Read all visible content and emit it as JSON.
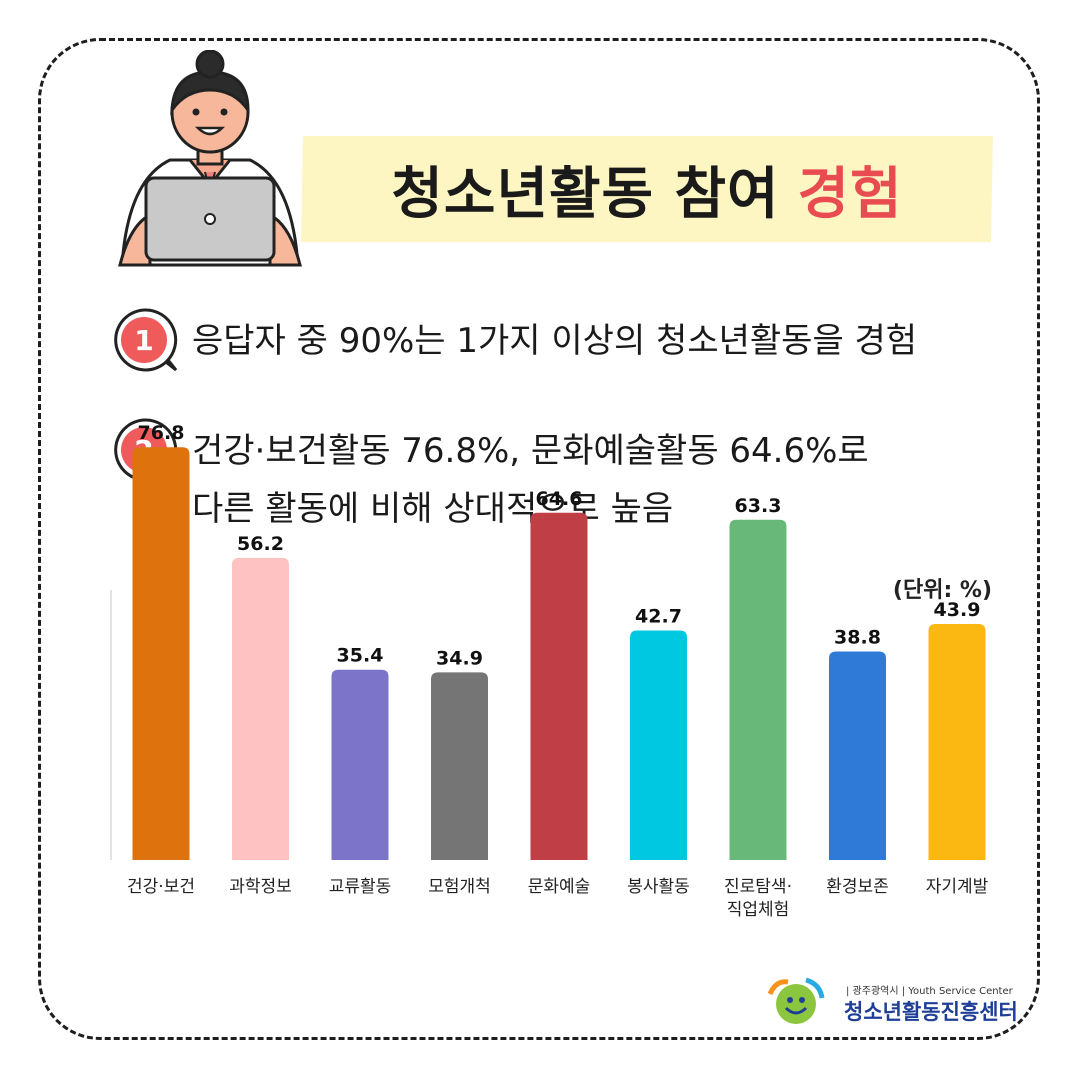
{
  "title": {
    "main": "청소년활동 참여",
    "accent": "경험"
  },
  "points": [
    {
      "badge": "1",
      "lines": [
        "응답자 중 90%는 1가지 이상의 청소년활동을 경험"
      ]
    },
    {
      "badge": "2",
      "lines": [
        "건강·보건활동 76.8%, 문화예술활동 64.6%로",
        "다른 활동에 비해 상대적으로 높음"
      ]
    }
  ],
  "unit_label": "(단위: %)",
  "colors": {
    "title_bg": "#fdf6c3",
    "accent": "#e84c51",
    "badge": "#ef5b5b"
  },
  "chart_data": {
    "type": "bar",
    "title": "",
    "xlabel": "",
    "ylabel": "",
    "ylim": [
      0,
      80
    ],
    "unit": "%",
    "categories": [
      "건강·보건",
      "과학정보",
      "교류활동",
      "모험개척",
      "문화예술",
      "봉사활동",
      "진로탐색·\n직업체험",
      "환경보존",
      "자기계발"
    ],
    "values": [
      76.8,
      56.2,
      35.4,
      34.9,
      64.6,
      42.7,
      63.3,
      38.8,
      43.9
    ],
    "value_labels": [
      "76.8",
      "56.2",
      "35.4",
      "34.9",
      "64.6",
      "42.7",
      "63.3",
      "38.8",
      "43.9"
    ],
    "colors": [
      "#de730e",
      "#ffc2c2",
      "#7b74c8",
      "#757575",
      "#c03e45",
      "#00c8e0",
      "#67b879",
      "#2e7ad6",
      "#fbb812"
    ],
    "grid": false
  },
  "logo": {
    "top_line": "| 광주광역시 | Youth Service Center",
    "name": "청소년활동진흥센터"
  }
}
